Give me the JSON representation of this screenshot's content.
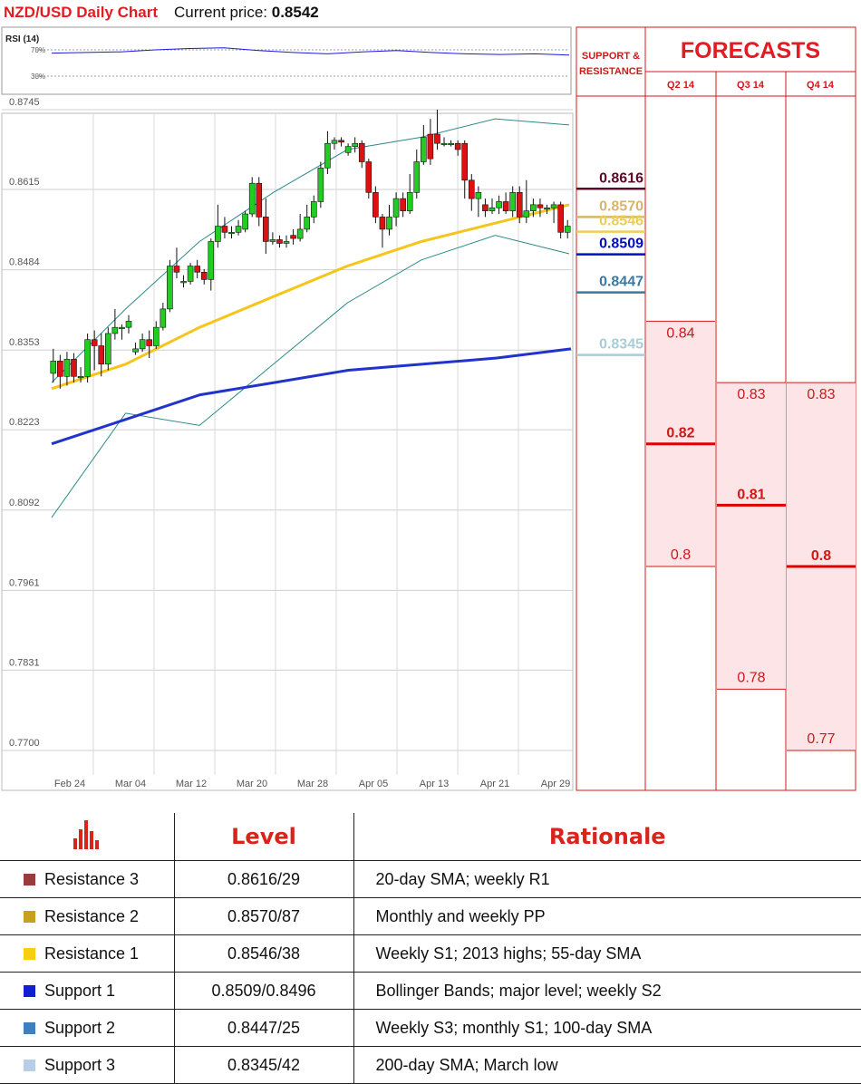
{
  "header": {
    "title": "NZD/USD Daily Chart",
    "price_label": "Current price:",
    "price_value": "0.8542"
  },
  "rsi": {
    "label": "RSI (14)",
    "levels": [
      "70%",
      "30%"
    ]
  },
  "sr_panel": {
    "title": "SUPPORT & RESISTANCE"
  },
  "forecasts": {
    "title": "FORECASTS",
    "quarters": [
      "Q2 14",
      "Q3 14",
      "Q4 14"
    ]
  },
  "chart_data": {
    "type": "candlestick",
    "title": "NZD/USD Daily Chart",
    "y_ticks": [
      "0.8745",
      "0.8615",
      "0.8484",
      "0.8353",
      "0.8223",
      "0.8092",
      "0.7961",
      "0.7831",
      "0.7700"
    ],
    "ylim": [
      0.77,
      0.8745
    ],
    "x_ticks": [
      "Feb 24",
      "Mar 04",
      "Mar 12",
      "Mar 20",
      "Mar 28",
      "Apr 05",
      "Apr 13",
      "Apr 21",
      "Apr 29"
    ],
    "grid": true,
    "candles": [
      [
        0.8315,
        0.8335,
        0.8355,
        0.83
      ],
      [
        0.8335,
        0.831,
        0.8345,
        0.829
      ],
      [
        0.831,
        0.8338,
        0.835,
        0.8295
      ],
      [
        0.8338,
        0.831,
        0.8348,
        0.83
      ],
      [
        0.831,
        0.831,
        0.8325,
        0.83
      ],
      [
        0.831,
        0.837,
        0.838,
        0.83
      ],
      [
        0.837,
        0.836,
        0.8385,
        0.832
      ],
      [
        0.836,
        0.833,
        0.838,
        0.831
      ],
      [
        0.833,
        0.838,
        0.839,
        0.832
      ],
      [
        0.838,
        0.839,
        0.842,
        0.837
      ],
      [
        0.839,
        0.839,
        0.8395,
        0.837
      ],
      [
        0.839,
        0.84,
        0.841,
        0.838
      ],
      [
        0.835,
        0.8355,
        0.8365,
        0.8345
      ],
      [
        0.8355,
        0.837,
        0.838,
        0.835
      ],
      [
        0.837,
        0.836,
        0.8385,
        0.834
      ],
      [
        0.836,
        0.839,
        0.84,
        0.8355
      ],
      [
        0.839,
        0.842,
        0.843,
        0.8385
      ],
      [
        0.842,
        0.849,
        0.85,
        0.8415
      ],
      [
        0.849,
        0.848,
        0.852,
        0.847
      ],
      [
        0.8465,
        0.8465,
        0.8475,
        0.8455
      ],
      [
        0.8465,
        0.849,
        0.8495,
        0.846
      ],
      [
        0.849,
        0.848,
        0.85,
        0.847
      ],
      [
        0.848,
        0.8468,
        0.8485,
        0.846
      ],
      [
        0.8468,
        0.853,
        0.8535,
        0.845
      ],
      [
        0.853,
        0.8555,
        0.859,
        0.852
      ],
      [
        0.8555,
        0.8545,
        0.857,
        0.8535
      ],
      [
        0.8545,
        0.8545,
        0.8555,
        0.8535
      ],
      [
        0.8545,
        0.8555,
        0.8565,
        0.854
      ],
      [
        0.855,
        0.8575,
        0.858,
        0.8545
      ],
      [
        0.8575,
        0.8625,
        0.8635,
        0.857
      ],
      [
        0.8625,
        0.857,
        0.8635,
        0.8555
      ],
      [
        0.857,
        0.853,
        0.86,
        0.851
      ],
      [
        0.853,
        0.8533,
        0.8545,
        0.8525
      ],
      [
        0.8533,
        0.8527,
        0.854,
        0.852
      ],
      [
        0.8527,
        0.853,
        0.854,
        0.852
      ],
      [
        0.854,
        0.8535,
        0.855,
        0.8525
      ],
      [
        0.8535,
        0.855,
        0.8575,
        0.853
      ],
      [
        0.855,
        0.857,
        0.859,
        0.8545
      ],
      [
        0.857,
        0.8595,
        0.8605,
        0.856
      ],
      [
        0.8595,
        0.865,
        0.866,
        0.8585
      ],
      [
        0.865,
        0.869,
        0.871,
        0.864
      ],
      [
        0.869,
        0.8695,
        0.87,
        0.868
      ],
      [
        0.8695,
        0.8692,
        0.87,
        0.8685
      ],
      [
        0.8675,
        0.8685,
        0.869,
        0.867
      ],
      [
        0.8685,
        0.869,
        0.87,
        0.8675
      ],
      [
        0.869,
        0.866,
        0.8695,
        0.865
      ],
      [
        0.866,
        0.861,
        0.8665,
        0.86
      ],
      [
        0.861,
        0.857,
        0.862,
        0.856
      ],
      [
        0.857,
        0.855,
        0.8575,
        0.852
      ],
      [
        0.855,
        0.857,
        0.859,
        0.854
      ],
      [
        0.857,
        0.86,
        0.861,
        0.8555
      ],
      [
        0.86,
        0.858,
        0.861,
        0.857
      ],
      [
        0.858,
        0.861,
        0.864,
        0.8575
      ],
      [
        0.861,
        0.866,
        0.868,
        0.86
      ],
      [
        0.866,
        0.87,
        0.872,
        0.8655
      ],
      [
        0.8705,
        0.8665,
        0.873,
        0.8655
      ],
      [
        0.8705,
        0.869,
        0.8745,
        0.868
      ],
      [
        0.869,
        0.869,
        0.87,
        0.8685
      ],
      [
        0.869,
        0.869,
        0.8695,
        0.8685
      ],
      [
        0.869,
        0.868,
        0.8695,
        0.867
      ],
      [
        0.869,
        0.863,
        0.8695,
        0.86
      ],
      [
        0.863,
        0.86,
        0.864,
        0.858
      ],
      [
        0.86,
        0.861,
        0.862,
        0.857
      ],
      [
        0.859,
        0.858,
        0.86,
        0.857
      ],
      [
        0.858,
        0.8585,
        0.86,
        0.8575
      ],
      [
        0.8585,
        0.8595,
        0.8605,
        0.8575
      ],
      [
        0.8595,
        0.858,
        0.861,
        0.8575
      ],
      [
        0.858,
        0.861,
        0.862,
        0.857
      ],
      [
        0.861,
        0.857,
        0.862,
        0.856
      ],
      [
        0.857,
        0.858,
        0.863,
        0.856
      ],
      [
        0.858,
        0.859,
        0.86,
        0.857
      ],
      [
        0.859,
        0.8585,
        0.86,
        0.857
      ],
      [
        0.8585,
        0.8585,
        0.859,
        0.8575
      ],
      [
        0.8585,
        0.859,
        0.8595,
        0.856
      ],
      [
        0.859,
        0.8545,
        0.8595,
        0.8535
      ],
      [
        0.8545,
        0.8555,
        0.8565,
        0.8535
      ]
    ],
    "sma_55": [
      0.829,
      0.833,
      0.839,
      0.844,
      0.849,
      0.853,
      0.856,
      0.859
    ],
    "sma_200": [
      0.82,
      0.824,
      0.828,
      0.83,
      0.832,
      0.833,
      0.834,
      0.8355
    ],
    "bollinger_upper": [
      0.83,
      0.842,
      0.853,
      0.861,
      0.868,
      0.87,
      0.873,
      0.872
    ],
    "bollinger_lower": [
      0.808,
      0.825,
      0.823,
      0.833,
      0.843,
      0.85,
      0.854,
      0.851
    ],
    "rsi_values": [
      65,
      66,
      67,
      70,
      72,
      73,
      69,
      66,
      64,
      67,
      69,
      66,
      64,
      63,
      64,
      62
    ]
  },
  "sr_levels": [
    {
      "value": "0.8616",
      "color": "#5c0a2a",
      "y": 0.8616
    },
    {
      "value": "0.8570",
      "color": "#d9b46e",
      "y": 0.857
    },
    {
      "value": "0.8546",
      "color": "#f0cc55",
      "y": 0.8546
    },
    {
      "value": "0.8509",
      "color": "#0010c0",
      "y": 0.8509
    },
    {
      "value": "0.8447",
      "color": "#3b7aa0",
      "y": 0.8447
    },
    {
      "value": "0.8345",
      "color": "#a7cdd8",
      "y": 0.8345
    }
  ],
  "forecast_ranges": [
    {
      "quarter": "Q2 14",
      "high": "0.84",
      "mid": "0.82",
      "low": "0.8",
      "h": 0.84,
      "m": 0.82,
      "l": 0.8
    },
    {
      "quarter": "Q3 14",
      "high": "0.83",
      "mid": "0.81",
      "low": "0.78",
      "h": 0.83,
      "m": 0.81,
      "l": 0.78
    },
    {
      "quarter": "Q4 14",
      "high": "0.83",
      "mid": "0.8",
      "low": "0.77",
      "h": 0.83,
      "m": 0.8,
      "l": 0.77
    }
  ],
  "level_table": {
    "headers": [
      "Level",
      "Rationale"
    ],
    "rows": [
      {
        "name": "Resistance 3",
        "level": "0.8616/29",
        "rationale": "20-day SMA; weekly R1",
        "color": "#9a3a3a"
      },
      {
        "name": "Resistance 2",
        "level": "0.8570/87",
        "rationale": "Monthly and weekly PP",
        "color": "#c8a020"
      },
      {
        "name": "Resistance 1",
        "level": "0.8546/38",
        "rationale": "Weekly S1; 2013 highs; 55-day SMA",
        "color": "#f5cf10"
      },
      {
        "name": "Support 1",
        "level": "0.8509/0.8496",
        "rationale": "Bollinger Bands; major level; weekly S2",
        "color": "#1020d0"
      },
      {
        "name": "Support 2",
        "level": "0.8447/25",
        "rationale": "Weekly S3; monthly S1; 100-day SMA",
        "color": "#3f7fbf"
      },
      {
        "name": "Support 3",
        "level": "0.8345/42",
        "rationale": "200-day SMA; March low",
        "color": "#b8cde8"
      }
    ]
  }
}
